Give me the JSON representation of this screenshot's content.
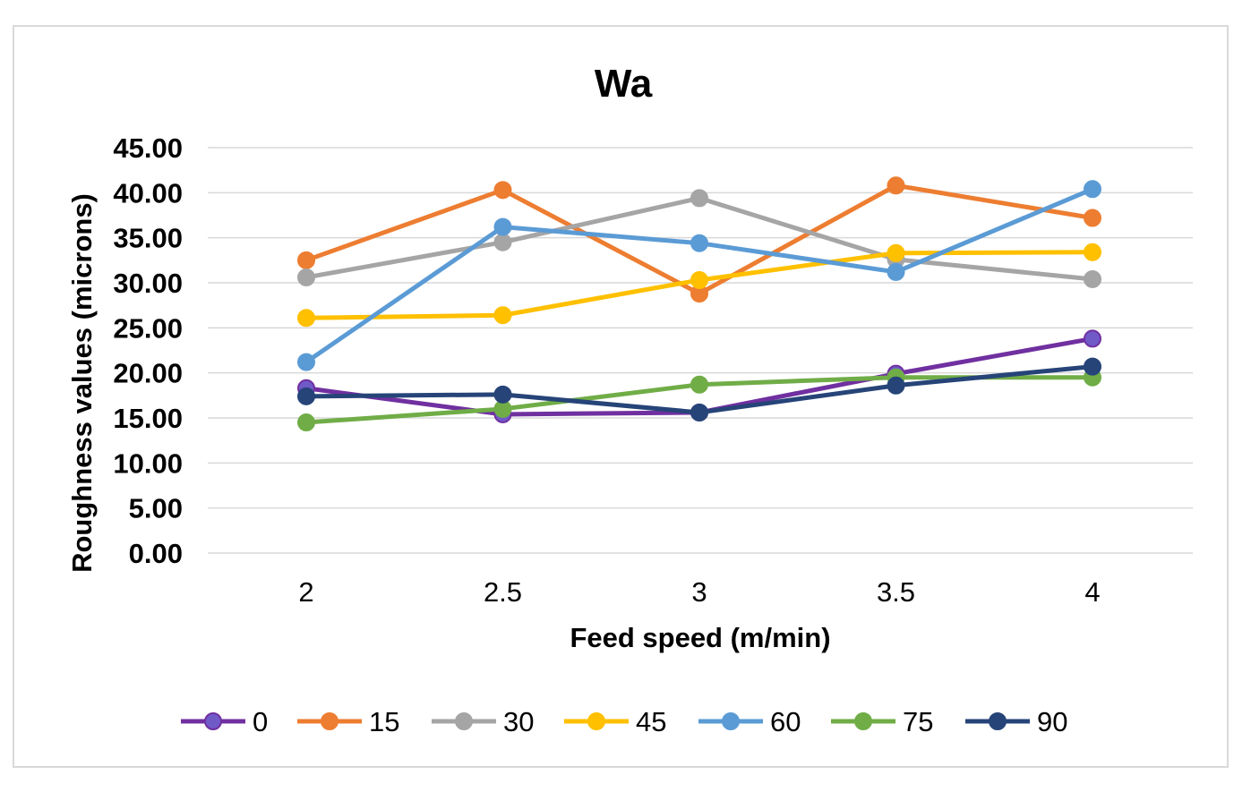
{
  "chart_data": {
    "type": "line",
    "title": "Wa",
    "xlabel": "Feed speed (m/min)",
    "ylabel": "Roughness values (microns)",
    "categories": [
      "2",
      "2.5",
      "3",
      "3.5",
      "4"
    ],
    "ylim": [
      0,
      45
    ],
    "yticks": [
      "0.00",
      "5.00",
      "10.00",
      "15.00",
      "20.00",
      "25.00",
      "30.00",
      "35.00",
      "40.00",
      "45.00"
    ],
    "grid": true,
    "legend_position": "bottom",
    "series": [
      {
        "name": "0",
        "color": "#7030a0",
        "marker_color": "#6f5ac8",
        "values": [
          18.3,
          15.4,
          15.6,
          19.9,
          23.8
        ]
      },
      {
        "name": "15",
        "color": "#ed7d31",
        "marker_color": "#ed7d31",
        "values": [
          32.5,
          40.3,
          28.8,
          40.8,
          37.2
        ]
      },
      {
        "name": "30",
        "color": "#a5a5a5",
        "marker_color": "#a5a5a5",
        "values": [
          30.6,
          34.5,
          39.4,
          32.6,
          30.4
        ]
      },
      {
        "name": "45",
        "color": "#ffc000",
        "marker_color": "#ffc000",
        "values": [
          26.1,
          26.4,
          30.3,
          33.3,
          33.4
        ]
      },
      {
        "name": "60",
        "color": "#5b9bd5",
        "marker_color": "#5b9bd5",
        "values": [
          21.2,
          36.2,
          34.4,
          31.2,
          40.4
        ]
      },
      {
        "name": "75",
        "color": "#70ad47",
        "marker_color": "#70ad47",
        "values": [
          14.5,
          16.0,
          18.7,
          19.5,
          19.5
        ]
      },
      {
        "name": "90",
        "color": "#264478",
        "marker_color": "#264478",
        "values": [
          17.4,
          17.6,
          15.6,
          18.6,
          20.7
        ]
      }
    ]
  }
}
